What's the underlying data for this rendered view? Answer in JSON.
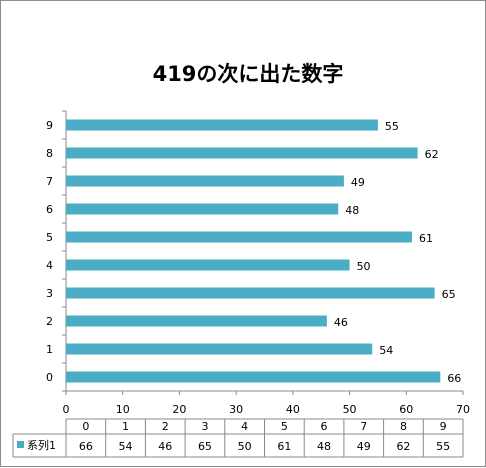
{
  "chart_data": {
    "type": "bar",
    "orientation": "horizontal",
    "title": "419の次に出た数字",
    "categories": [
      "0",
      "1",
      "2",
      "3",
      "4",
      "5",
      "6",
      "7",
      "8",
      "9"
    ],
    "series": [
      {
        "name": "系列1",
        "values": [
          66,
          54,
          46,
          65,
          50,
          61,
          48,
          49,
          62,
          55
        ]
      }
    ],
    "xlim": [
      0,
      70
    ],
    "x_ticks": [
      "0",
      "10",
      "20",
      "30",
      "40",
      "50",
      "60",
      "70"
    ],
    "grid": false,
    "legend": "bottom-data-table",
    "data_table": true,
    "bar_color": "#4BACC6"
  }
}
